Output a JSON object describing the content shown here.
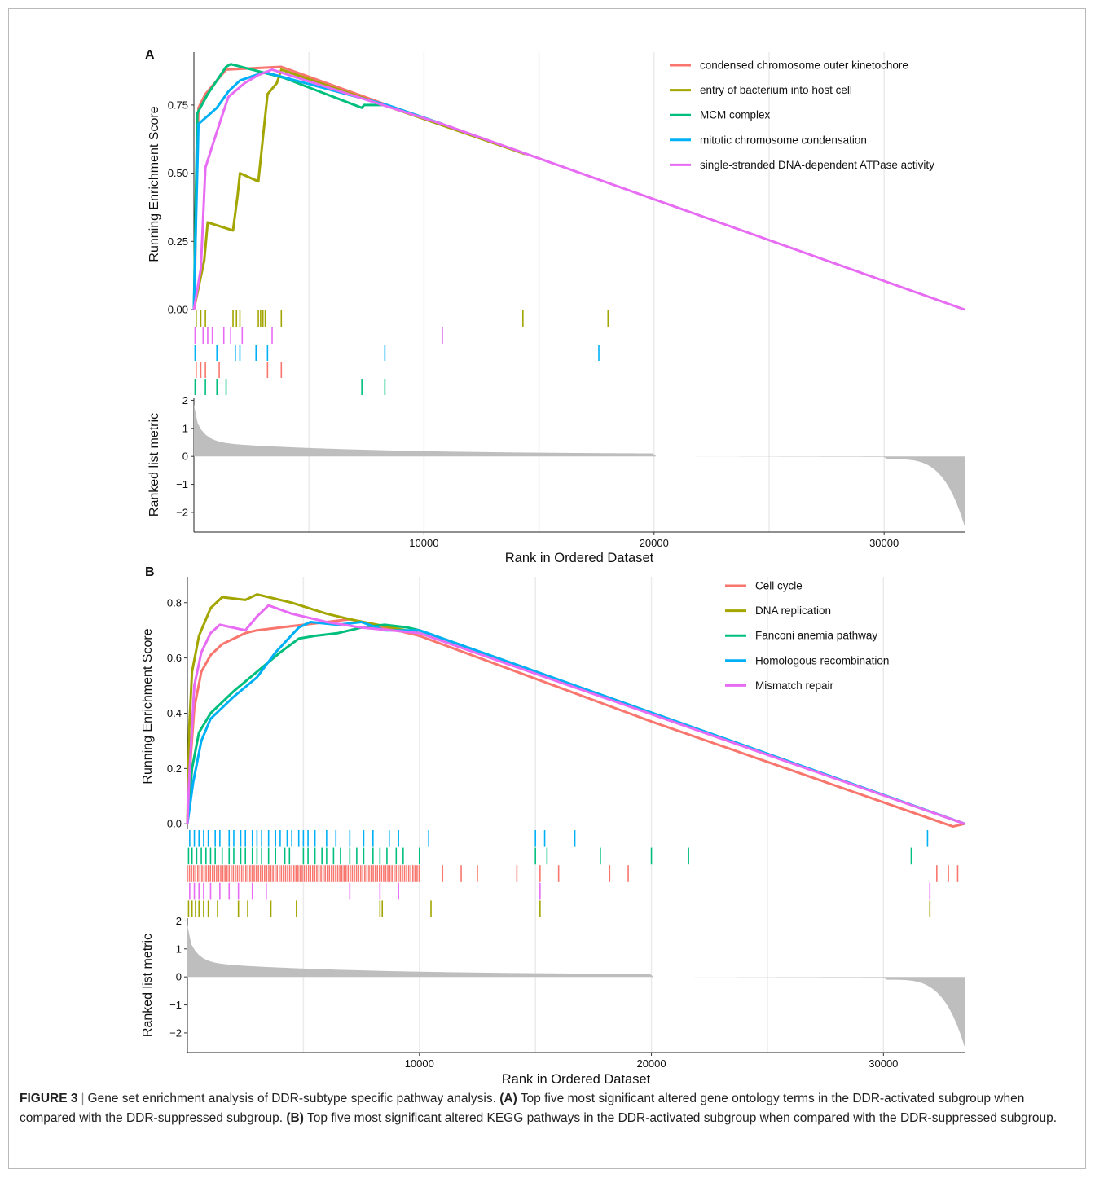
{
  "figure": {
    "label": "FIGURE 3",
    "title": "Gene set enrichment analysis of DDR-subtype specific pathway analysis.",
    "caption_a_tag": "(A)",
    "caption_a": "Top five most significant altered gene ontology terms in the DDR-activated subgroup when compared with the DDR-suppressed subgroup.",
    "caption_b_tag": "(B)",
    "caption_b": "Top five most significant altered KEGG pathways in the DDR-activated subgroup when compared with the DDR-suppressed subgroup."
  },
  "chart_data": [
    {
      "panel": "A",
      "type": "line",
      "xlabel": "Rank in Ordered Dataset",
      "ylabel": "Running Enrichment Score",
      "ylabel2": "Ranked list metric",
      "xlim": [
        0,
        33500
      ],
      "ylim": [
        0,
        0.92
      ],
      "x_ticks": [
        10000,
        20000,
        30000
      ],
      "y_ticks": [
        0.0,
        0.25,
        0.5,
        0.75
      ],
      "y_tick_labels": [
        "0.00",
        "0.25",
        "0.50",
        "0.75"
      ],
      "metric_ticks": [
        2,
        1,
        0,
        -1,
        -2
      ],
      "metric_range": [
        -2.7,
        2.1
      ],
      "legend_position": "top-right",
      "series": [
        {
          "name": "condensed chromosome outer kinetochore",
          "color": "#F8766D",
          "points": [
            [
              0,
              0
            ],
            [
              40,
              0.05
            ],
            [
              100,
              0.45
            ],
            [
              200,
              0.74
            ],
            [
              500,
              0.79
            ],
            [
              1200,
              0.86
            ],
            [
              1400,
              0.88
            ],
            [
              3800,
              0.89
            ],
            [
              8400,
              0.75
            ]
          ],
          "hits": [
            100,
            300,
            500,
            1100,
            3200,
            3800
          ]
        },
        {
          "name": "entry of bacterium into host cell",
          "color": "#A3A500",
          "points": [
            [
              0,
              0
            ],
            [
              150,
              0.06
            ],
            [
              450,
              0.18
            ],
            [
              600,
              0.32
            ],
            [
              1700,
              0.29
            ],
            [
              1900,
              0.42
            ],
            [
              2000,
              0.5
            ],
            [
              2800,
              0.47
            ],
            [
              3000,
              0.63
            ],
            [
              3200,
              0.79
            ],
            [
              3600,
              0.83
            ],
            [
              3800,
              0.88
            ],
            [
              14400,
              0.57
            ]
          ],
          "hits": [
            100,
            300,
            500,
            1700,
            1850,
            2000,
            2800,
            2900,
            3000,
            3100,
            3800,
            14300,
            18000
          ]
        },
        {
          "name": "MCM complex",
          "color": "#00BF7D",
          "points": [
            [
              0,
              0
            ],
            [
              60,
              0.3
            ],
            [
              150,
              0.72
            ],
            [
              600,
              0.79
            ],
            [
              1000,
              0.84
            ],
            [
              1400,
              0.89
            ],
            [
              1600,
              0.9
            ],
            [
              3900,
              0.85
            ],
            [
              7300,
              0.74
            ],
            [
              7400,
              0.75
            ],
            [
              8400,
              0.75
            ],
            [
              10800,
              0.68
            ]
          ],
          "hits": [
            50,
            500,
            1000,
            1400,
            7300,
            8300
          ]
        },
        {
          "name": "mitotic chromosome condensation",
          "color": "#00B0F6",
          "points": [
            [
              0,
              0
            ],
            [
              100,
              0.35
            ],
            [
              200,
              0.68
            ],
            [
              1000,
              0.74
            ],
            [
              1500,
              0.8
            ],
            [
              2000,
              0.84
            ],
            [
              2700,
              0.86
            ],
            [
              3100,
              0.87
            ],
            [
              8400,
              0.75
            ],
            [
              10800,
              0.68
            ]
          ],
          "hits": [
            50,
            1000,
            1800,
            2000,
            2700,
            3200,
            8300,
            17600
          ]
        },
        {
          "name": "single-stranded DNA-dependent ATPase activity",
          "color": "#E76BF3",
          "points": [
            [
              0,
              0
            ],
            [
              300,
              0.15
            ],
            [
              500,
              0.52
            ],
            [
              800,
              0.6
            ],
            [
              1300,
              0.73
            ],
            [
              1500,
              0.78
            ],
            [
              2200,
              0.83
            ],
            [
              2800,
              0.86
            ],
            [
              3400,
              0.88
            ],
            [
              10800,
              0.68
            ],
            [
              33500,
              0.0
            ]
          ],
          "hits": [
            50,
            400,
            600,
            800,
            1300,
            1600,
            2100,
            3400,
            10800
          ]
        }
      ]
    },
    {
      "panel": "B",
      "type": "line",
      "xlabel": "Rank in Ordered Dataset",
      "ylabel": "Running Enrichment Score",
      "ylabel2": "Ranked list metric",
      "xlim": [
        0,
        33500
      ],
      "ylim": [
        -0.02,
        0.87
      ],
      "x_ticks": [
        10000,
        20000,
        30000
      ],
      "y_ticks": [
        0.0,
        0.2,
        0.4,
        0.6,
        0.8
      ],
      "y_tick_labels": [
        "0.0",
        "0.2",
        "0.4",
        "0.6",
        "0.8"
      ],
      "metric_ticks": [
        2,
        1,
        0,
        -1,
        -2
      ],
      "metric_range": [
        -2.7,
        2.1
      ],
      "legend_position": "top-right",
      "series": [
        {
          "name": "Cell cycle",
          "color": "#F8766D",
          "points": [
            [
              0,
              0
            ],
            [
              150,
              0.25
            ],
            [
              300,
              0.42
            ],
            [
              600,
              0.55
            ],
            [
              1000,
              0.61
            ],
            [
              1500,
              0.65
            ],
            [
              2000,
              0.67
            ],
            [
              2500,
              0.69
            ],
            [
              3000,
              0.7
            ],
            [
              4000,
              0.71
            ],
            [
              5000,
              0.72
            ],
            [
              6000,
              0.73
            ],
            [
              7000,
              0.74
            ],
            [
              8000,
              0.72
            ],
            [
              9000,
              0.7
            ],
            [
              10000,
              0.68
            ],
            [
              20000,
              0.37
            ],
            [
              33000,
              -0.01
            ],
            [
              33500,
              0.0
            ]
          ],
          "hits": []
        },
        {
          "name": "DNA replication",
          "color": "#A3A500",
          "points": [
            [
              0,
              0
            ],
            [
              80,
              0.35
            ],
            [
              200,
              0.55
            ],
            [
              500,
              0.68
            ],
            [
              1000,
              0.78
            ],
            [
              1500,
              0.82
            ],
            [
              2500,
              0.81
            ],
            [
              3000,
              0.83
            ],
            [
              3500,
              0.82
            ],
            [
              4500,
              0.8
            ],
            [
              6000,
              0.76
            ],
            [
              7000,
              0.74
            ],
            [
              10000,
              0.69
            ]
          ],
          "hits": [
            50,
            200,
            350,
            500,
            700,
            900,
            1300,
            2200,
            2600,
            3600,
            4700,
            8300,
            8400,
            10500,
            15200,
            32000
          ]
        },
        {
          "name": "Fanconi anemia pathway",
          "color": "#00BF7D",
          "points": [
            [
              0,
              0
            ],
            [
              200,
              0.2
            ],
            [
              500,
              0.33
            ],
            [
              1000,
              0.4
            ],
            [
              2000,
              0.48
            ],
            [
              3000,
              0.55
            ],
            [
              4000,
              0.62
            ],
            [
              4800,
              0.67
            ],
            [
              5500,
              0.68
            ],
            [
              6500,
              0.69
            ],
            [
              7500,
              0.71
            ],
            [
              8500,
              0.72
            ],
            [
              9500,
              0.71
            ],
            [
              10000,
              0.7
            ],
            [
              33500,
              0.0
            ]
          ],
          "hits": [
            50,
            200,
            400,
            600,
            800,
            1000,
            1200,
            1500,
            1800,
            2000,
            2300,
            2500,
            2800,
            3000,
            3200,
            3500,
            3800,
            4200,
            4400,
            5000,
            5200,
            5500,
            5800,
            6000,
            6300,
            6600,
            7000,
            7300,
            7600,
            8000,
            8300,
            8600,
            9000,
            9300,
            10000,
            15000,
            15500,
            17800,
            20000,
            21600,
            31200
          ]
        },
        {
          "name": "Homologous recombination",
          "color": "#00B0F6",
          "points": [
            [
              0,
              0
            ],
            [
              250,
              0.15
            ],
            [
              600,
              0.3
            ],
            [
              1000,
              0.38
            ],
            [
              2000,
              0.46
            ],
            [
              3000,
              0.53
            ],
            [
              3800,
              0.62
            ],
            [
              4800,
              0.71
            ],
            [
              5300,
              0.73
            ],
            [
              6500,
              0.72
            ],
            [
              7500,
              0.73
            ],
            [
              8500,
              0.7
            ],
            [
              10000,
              0.7
            ],
            [
              33500,
              0.0
            ]
          ],
          "hits": [
            100,
            300,
            500,
            700,
            900,
            1200,
            1400,
            1800,
            2000,
            2300,
            2500,
            2800,
            3000,
            3200,
            3500,
            3800,
            4000,
            4300,
            4500,
            4800,
            5000,
            5200,
            5500,
            6000,
            6400,
            7000,
            7600,
            8000,
            8700,
            9100,
            10400,
            15000,
            15400,
            16700,
            31900
          ]
        },
        {
          "name": "Mismatch repair",
          "color": "#E76BF3",
          "points": [
            [
              0,
              0
            ],
            [
              100,
              0.2
            ],
            [
              300,
              0.5
            ],
            [
              600,
              0.62
            ],
            [
              1000,
              0.69
            ],
            [
              1400,
              0.72
            ],
            [
              2500,
              0.7
            ],
            [
              3000,
              0.75
            ],
            [
              3500,
              0.79
            ],
            [
              4500,
              0.76
            ],
            [
              6000,
              0.73
            ],
            [
              7500,
              0.71
            ],
            [
              10000,
              0.69
            ],
            [
              33500,
              0.0
            ]
          ],
          "hits": [
            100,
            300,
            500,
            700,
            1000,
            1400,
            1800,
            2200,
            2800,
            3400,
            7000,
            8300,
            9100,
            15200,
            32000
          ]
        }
      ]
    }
  ]
}
